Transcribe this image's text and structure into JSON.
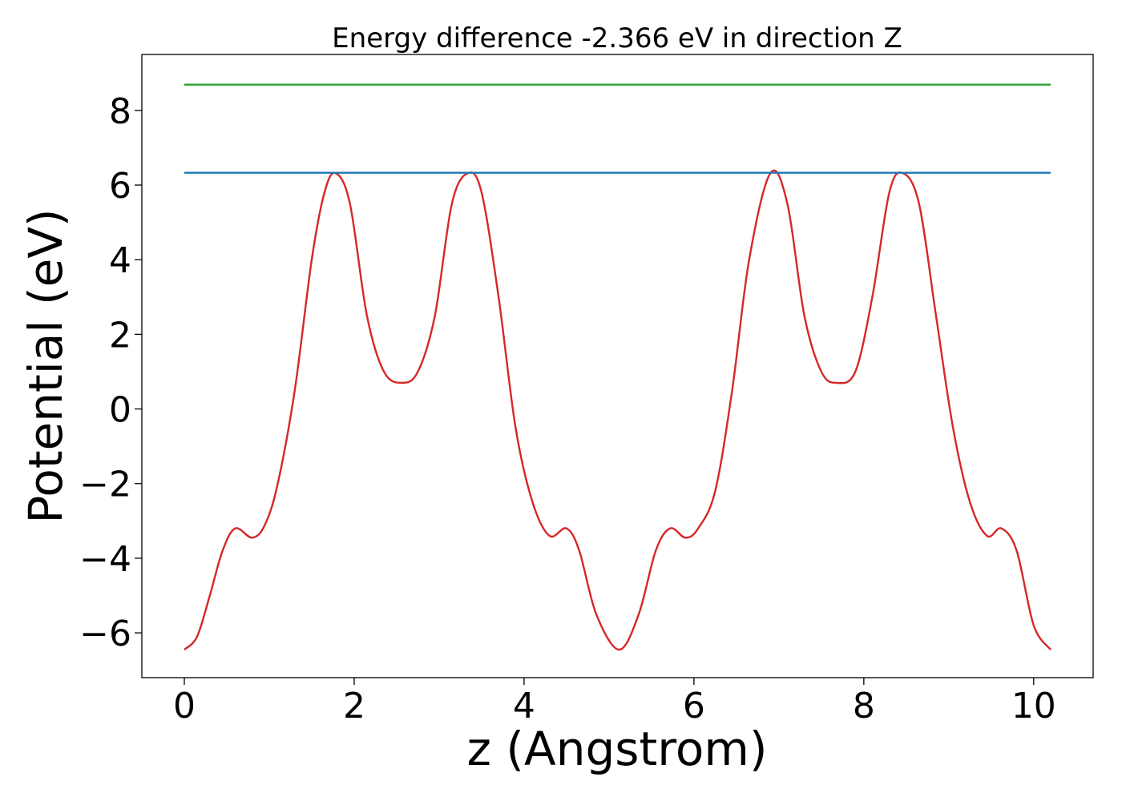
{
  "chart_data": {
    "type": "line",
    "title": "Energy difference -2.366 eV in direction Z",
    "xlabel": "z (Angstrom)",
    "ylabel": "Potential (eV)",
    "xlim": [
      -0.5,
      10.7
    ],
    "ylim": [
      -7.2,
      9.5
    ],
    "xticks": [
      0,
      2,
      4,
      6,
      8,
      10
    ],
    "xtick_labels": [
      "0",
      "2",
      "4",
      "6",
      "8",
      "10"
    ],
    "yticks": [
      -6,
      -4,
      -2,
      0,
      2,
      4,
      6,
      8
    ],
    "ytick_labels": [
      "−6",
      "−4",
      "−2",
      "0",
      "2",
      "4",
      "6",
      "8"
    ],
    "grid": false,
    "series": [
      {
        "color": "#d62728",
        "x": [
          0.0,
          0.15,
          0.3,
          0.45,
          0.6,
          0.8,
          0.95,
          1.1,
          1.3,
          1.5,
          1.65,
          1.78,
          1.95,
          2.15,
          2.35,
          2.56,
          2.75,
          2.95,
          3.15,
          3.34,
          3.5,
          3.7,
          3.9,
          4.1,
          4.3,
          4.5,
          4.65,
          4.85,
          5.12,
          5.35,
          5.55,
          5.72,
          5.9,
          6.05,
          6.25,
          6.45,
          6.65,
          6.9,
          7.1,
          7.3,
          7.5,
          7.68,
          7.9,
          8.1,
          8.3,
          8.46,
          8.65,
          8.85,
          9.05,
          9.25,
          9.45,
          9.62,
          9.8,
          10.0,
          10.2
        ],
        "y": [
          -6.45,
          -6.1,
          -5.0,
          -3.8,
          -3.2,
          -3.45,
          -3.1,
          -2.0,
          0.5,
          4.0,
          5.8,
          6.32,
          5.5,
          2.5,
          1.0,
          0.7,
          1.0,
          2.5,
          5.5,
          6.32,
          5.8,
          3.0,
          -0.5,
          -2.5,
          -3.4,
          -3.2,
          -3.8,
          -5.5,
          -6.45,
          -5.5,
          -3.8,
          -3.2,
          -3.45,
          -3.2,
          -2.2,
          0.5,
          4.0,
          6.32,
          5.5,
          2.5,
          1.0,
          0.7,
          1.0,
          3.0,
          5.8,
          6.32,
          5.5,
          2.5,
          -0.5,
          -2.5,
          -3.4,
          -3.2,
          -3.8,
          -5.8,
          -6.45
        ]
      },
      {
        "color": "#1f77b4",
        "x": [
          0.0,
          10.2
        ],
        "y": [
          6.33,
          6.33
        ]
      },
      {
        "color": "#2ca02c",
        "x": [
          0.0,
          10.2
        ],
        "y": [
          8.69,
          8.69
        ]
      }
    ]
  }
}
